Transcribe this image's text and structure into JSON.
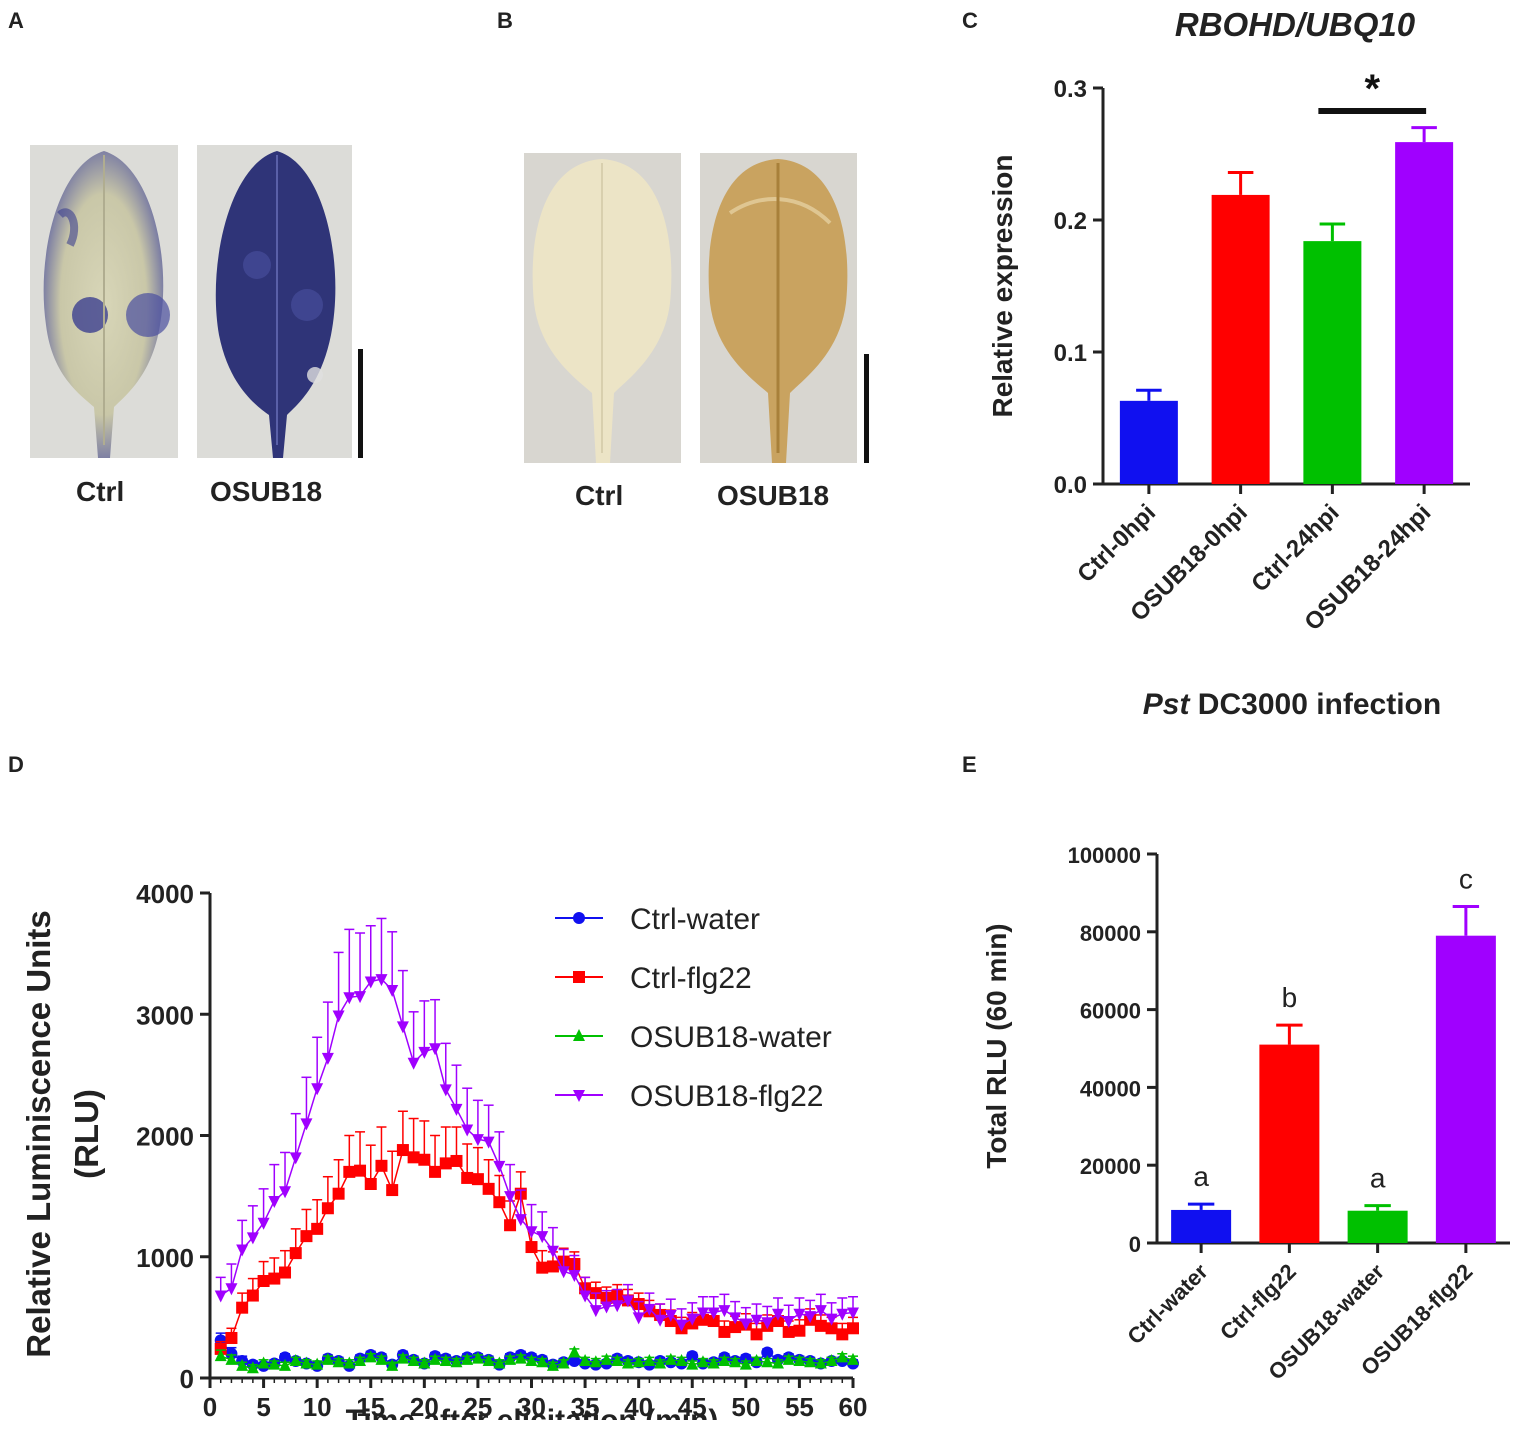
{
  "panels": {
    "A": {
      "label": "A",
      "captions": [
        "Ctrl",
        "OSUB18"
      ]
    },
    "B": {
      "label": "B",
      "captions": [
        "Ctrl",
        "OSUB18"
      ]
    },
    "C": {
      "label": "C"
    },
    "D": {
      "label": "D"
    },
    "E": {
      "label": "E"
    }
  },
  "colors": {
    "blue": "#1010f0",
    "red": "#ff0000",
    "green": "#00c000",
    "purple": "#a000ff"
  },
  "chart_data": [
    {
      "id": "C",
      "type": "bar",
      "title": "RBOHD/UBQ10",
      "ylabel": "Relative expression",
      "xlabel_italic": "Pst",
      "xlabel_rest": " DC3000 infection",
      "categories": [
        "Ctrl-0hpi",
        "OSUB18-0hpi",
        "Ctrl-24hpi",
        "OSUB18-24hpi"
      ],
      "values": [
        0.063,
        0.219,
        0.184,
        0.259
      ],
      "errors": [
        0.008,
        0.017,
        0.013,
        0.011
      ],
      "colors": [
        "#1010f0",
        "#ff0000",
        "#00c000",
        "#a000ff"
      ],
      "ylim": [
        0,
        0.3
      ],
      "yticks": [
        "0.0",
        "0.1",
        "0.2",
        "0.3"
      ],
      "significance": {
        "label": "*",
        "from": 2,
        "to": 3
      }
    },
    {
      "id": "D",
      "type": "line",
      "xlabel": "Time after elicitation (min)",
      "ylabel_line1": "Relative Luminiscence Units",
      "ylabel_line2": "(RLU)",
      "xlim": [
        0,
        60
      ],
      "ylim": [
        0,
        4000
      ],
      "xticks": [
        "0",
        "5",
        "10",
        "15",
        "20",
        "25",
        "30",
        "35",
        "40",
        "45",
        "50",
        "55",
        "60"
      ],
      "yticks": [
        "0",
        "1000",
        "2000",
        "3000",
        "4000"
      ],
      "series": [
        {
          "name": "Ctrl-water",
          "marker": "circle",
          "color": "#1010f0",
          "values": [
            310,
            200,
            140,
            110,
            100,
            120,
            170,
            140,
            120,
            100,
            160,
            140,
            100,
            160,
            190,
            170,
            110,
            190,
            150,
            120,
            180,
            160,
            140,
            170,
            170,
            150,
            110,
            170,
            190,
            170,
            150,
            110,
            130,
            140,
            120,
            110,
            120,
            160,
            140,
            130,
            110,
            140,
            130,
            120,
            180,
            120,
            130,
            170,
            140,
            160,
            130,
            210,
            150,
            170,
            150,
            140,
            120,
            140,
            140,
            120
          ],
          "errors": [
            60,
            50,
            40,
            30,
            30,
            30,
            30,
            30,
            30,
            30,
            30,
            30,
            30,
            30,
            30,
            30,
            30,
            30,
            30,
            30,
            30,
            30,
            30,
            30,
            30,
            30,
            30,
            30,
            30,
            30,
            30,
            30,
            30,
            30,
            30,
            30,
            30,
            30,
            30,
            30,
            30,
            30,
            30,
            30,
            30,
            30,
            30,
            30,
            30,
            30,
            30,
            30,
            30,
            30,
            30,
            30,
            30,
            30,
            30,
            30
          ]
        },
        {
          "name": "Ctrl-flg22",
          "marker": "square",
          "color": "#ff0000",
          "values": [
            240,
            330,
            580,
            680,
            800,
            820,
            870,
            1030,
            1170,
            1230,
            1400,
            1520,
            1700,
            1710,
            1600,
            1750,
            1550,
            1880,
            1820,
            1800,
            1700,
            1770,
            1790,
            1650,
            1640,
            1560,
            1450,
            1260,
            1520,
            1080,
            910,
            920,
            960,
            940,
            740,
            700,
            660,
            680,
            640,
            610,
            550,
            520,
            470,
            410,
            450,
            480,
            470,
            380,
            420,
            440,
            360,
            430,
            470,
            380,
            390,
            480,
            430,
            410,
            360,
            410
          ],
          "errors": [
            60,
            80,
            120,
            140,
            160,
            170,
            180,
            200,
            220,
            240,
            260,
            280,
            300,
            320,
            320,
            320,
            320,
            320,
            320,
            320,
            300,
            300,
            280,
            280,
            260,
            240,
            220,
            200,
            180,
            160,
            140,
            120,
            110,
            100,
            90,
            90,
            90,
            90,
            90,
            90,
            90,
            90,
            90,
            90,
            90,
            90,
            90,
            90,
            90,
            90,
            90,
            90,
            90,
            90,
            90,
            90,
            90,
            90,
            90,
            90
          ]
        },
        {
          "name": "OSUB18-water",
          "marker": "triangle-up",
          "color": "#00c000",
          "values": [
            180,
            150,
            100,
            80,
            120,
            110,
            100,
            140,
            120,
            110,
            150,
            130,
            120,
            140,
            170,
            150,
            100,
            160,
            140,
            120,
            150,
            140,
            130,
            150,
            160,
            140,
            120,
            150,
            160,
            140,
            130,
            100,
            120,
            210,
            140,
            130,
            150,
            140,
            120,
            130,
            140,
            120,
            150,
            140,
            110,
            130,
            120,
            140,
            130,
            110,
            140,
            130,
            120,
            150,
            140,
            130,
            120,
            140,
            170,
            150
          ],
          "errors": [
            50,
            40,
            30,
            30,
            30,
            30,
            30,
            30,
            30,
            30,
            30,
            30,
            30,
            30,
            30,
            30,
            30,
            30,
            30,
            30,
            30,
            30,
            30,
            30,
            30,
            30,
            30,
            30,
            30,
            30,
            30,
            30,
            30,
            30,
            30,
            30,
            30,
            30,
            30,
            30,
            30,
            30,
            30,
            30,
            30,
            30,
            30,
            30,
            30,
            30,
            30,
            30,
            30,
            30,
            30,
            30,
            30,
            30,
            30,
            30
          ]
        },
        {
          "name": "OSUB18-flg22",
          "marker": "triangle-down",
          "color": "#a000ff",
          "values": [
            680,
            740,
            1060,
            1160,
            1280,
            1460,
            1540,
            1820,
            2100,
            2390,
            2640,
            2990,
            3140,
            3150,
            3270,
            3290,
            3200,
            2900,
            2600,
            2690,
            2720,
            2380,
            2220,
            2050,
            1970,
            1950,
            1750,
            1500,
            1310,
            1210,
            1170,
            1050,
            880,
            850,
            680,
            560,
            590,
            600,
            640,
            500,
            570,
            480,
            520,
            440,
            490,
            540,
            540,
            560,
            500,
            450,
            480,
            460,
            530,
            470,
            530,
            510,
            560,
            490,
            530,
            540
          ],
          "errors": [
            150,
            200,
            240,
            260,
            280,
            300,
            320,
            360,
            380,
            420,
            460,
            520,
            560,
            520,
            460,
            500,
            480,
            460,
            420,
            420,
            400,
            380,
            360,
            340,
            320,
            300,
            280,
            260,
            240,
            220,
            200,
            190,
            180,
            160,
            150,
            140,
            130,
            130,
            130,
            130,
            130,
            130,
            130,
            130,
            130,
            130,
            130,
            130,
            130,
            130,
            130,
            130,
            130,
            130,
            130,
            130,
            130,
            130,
            130,
            130
          ]
        }
      ]
    },
    {
      "id": "E",
      "type": "bar",
      "ylabel": "Total RLU (60 min)",
      "categories": [
        "Ctrl-water",
        "Ctrl-flg22",
        "OSUB18-water",
        "OSUB18-flg22"
      ],
      "values": [
        8500,
        51000,
        8300,
        79000
      ],
      "errors": [
        1500,
        5000,
        1300,
        7500
      ],
      "letters": [
        "a",
        "b",
        "a",
        "c"
      ],
      "colors": [
        "#1010f0",
        "#ff0000",
        "#00c000",
        "#a000ff"
      ],
      "ylim": [
        0,
        100000
      ],
      "yticks": [
        "0",
        "20000",
        "40000",
        "60000",
        "80000",
        "100000"
      ]
    }
  ]
}
